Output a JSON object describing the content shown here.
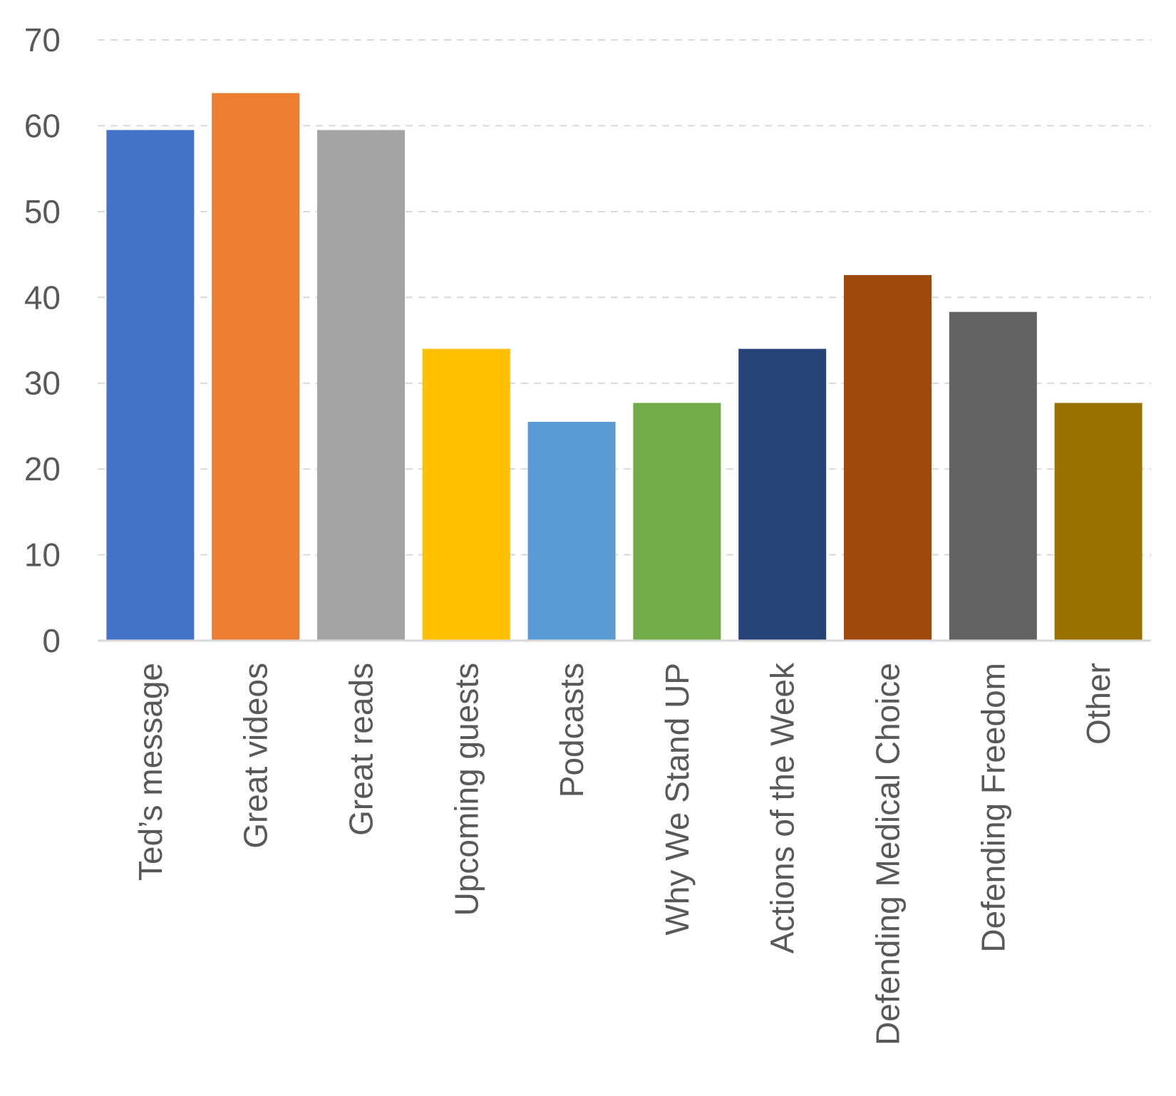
{
  "chart_data": {
    "type": "bar",
    "title": "",
    "xlabel": "",
    "ylabel": "",
    "ylim": [
      0,
      70
    ],
    "yticks": [
      0,
      10,
      20,
      30,
      40,
      50,
      60,
      70
    ],
    "grid": true,
    "legend": "none",
    "categories": [
      "Ted’s message",
      "Great videos",
      "Great reads",
      "Upcoming guests",
      "Podcasts",
      "Why We Stand UP",
      "Actions of the Week",
      "Defending Medical Choice",
      "Defending Freedom",
      "Other"
    ],
    "values": [
      59.5,
      63.8,
      59.5,
      34,
      25.5,
      27.7,
      34,
      42.6,
      38.3,
      27.7
    ],
    "colors": [
      "#4472c4",
      "#ed7d31",
      "#a5a5a5",
      "#ffc000",
      "#5b9bd5",
      "#70ad47",
      "#264478",
      "#9e480e",
      "#636363",
      "#997300"
    ],
    "gridline_color": "#d9d9d9",
    "label_color": "#595959"
  }
}
